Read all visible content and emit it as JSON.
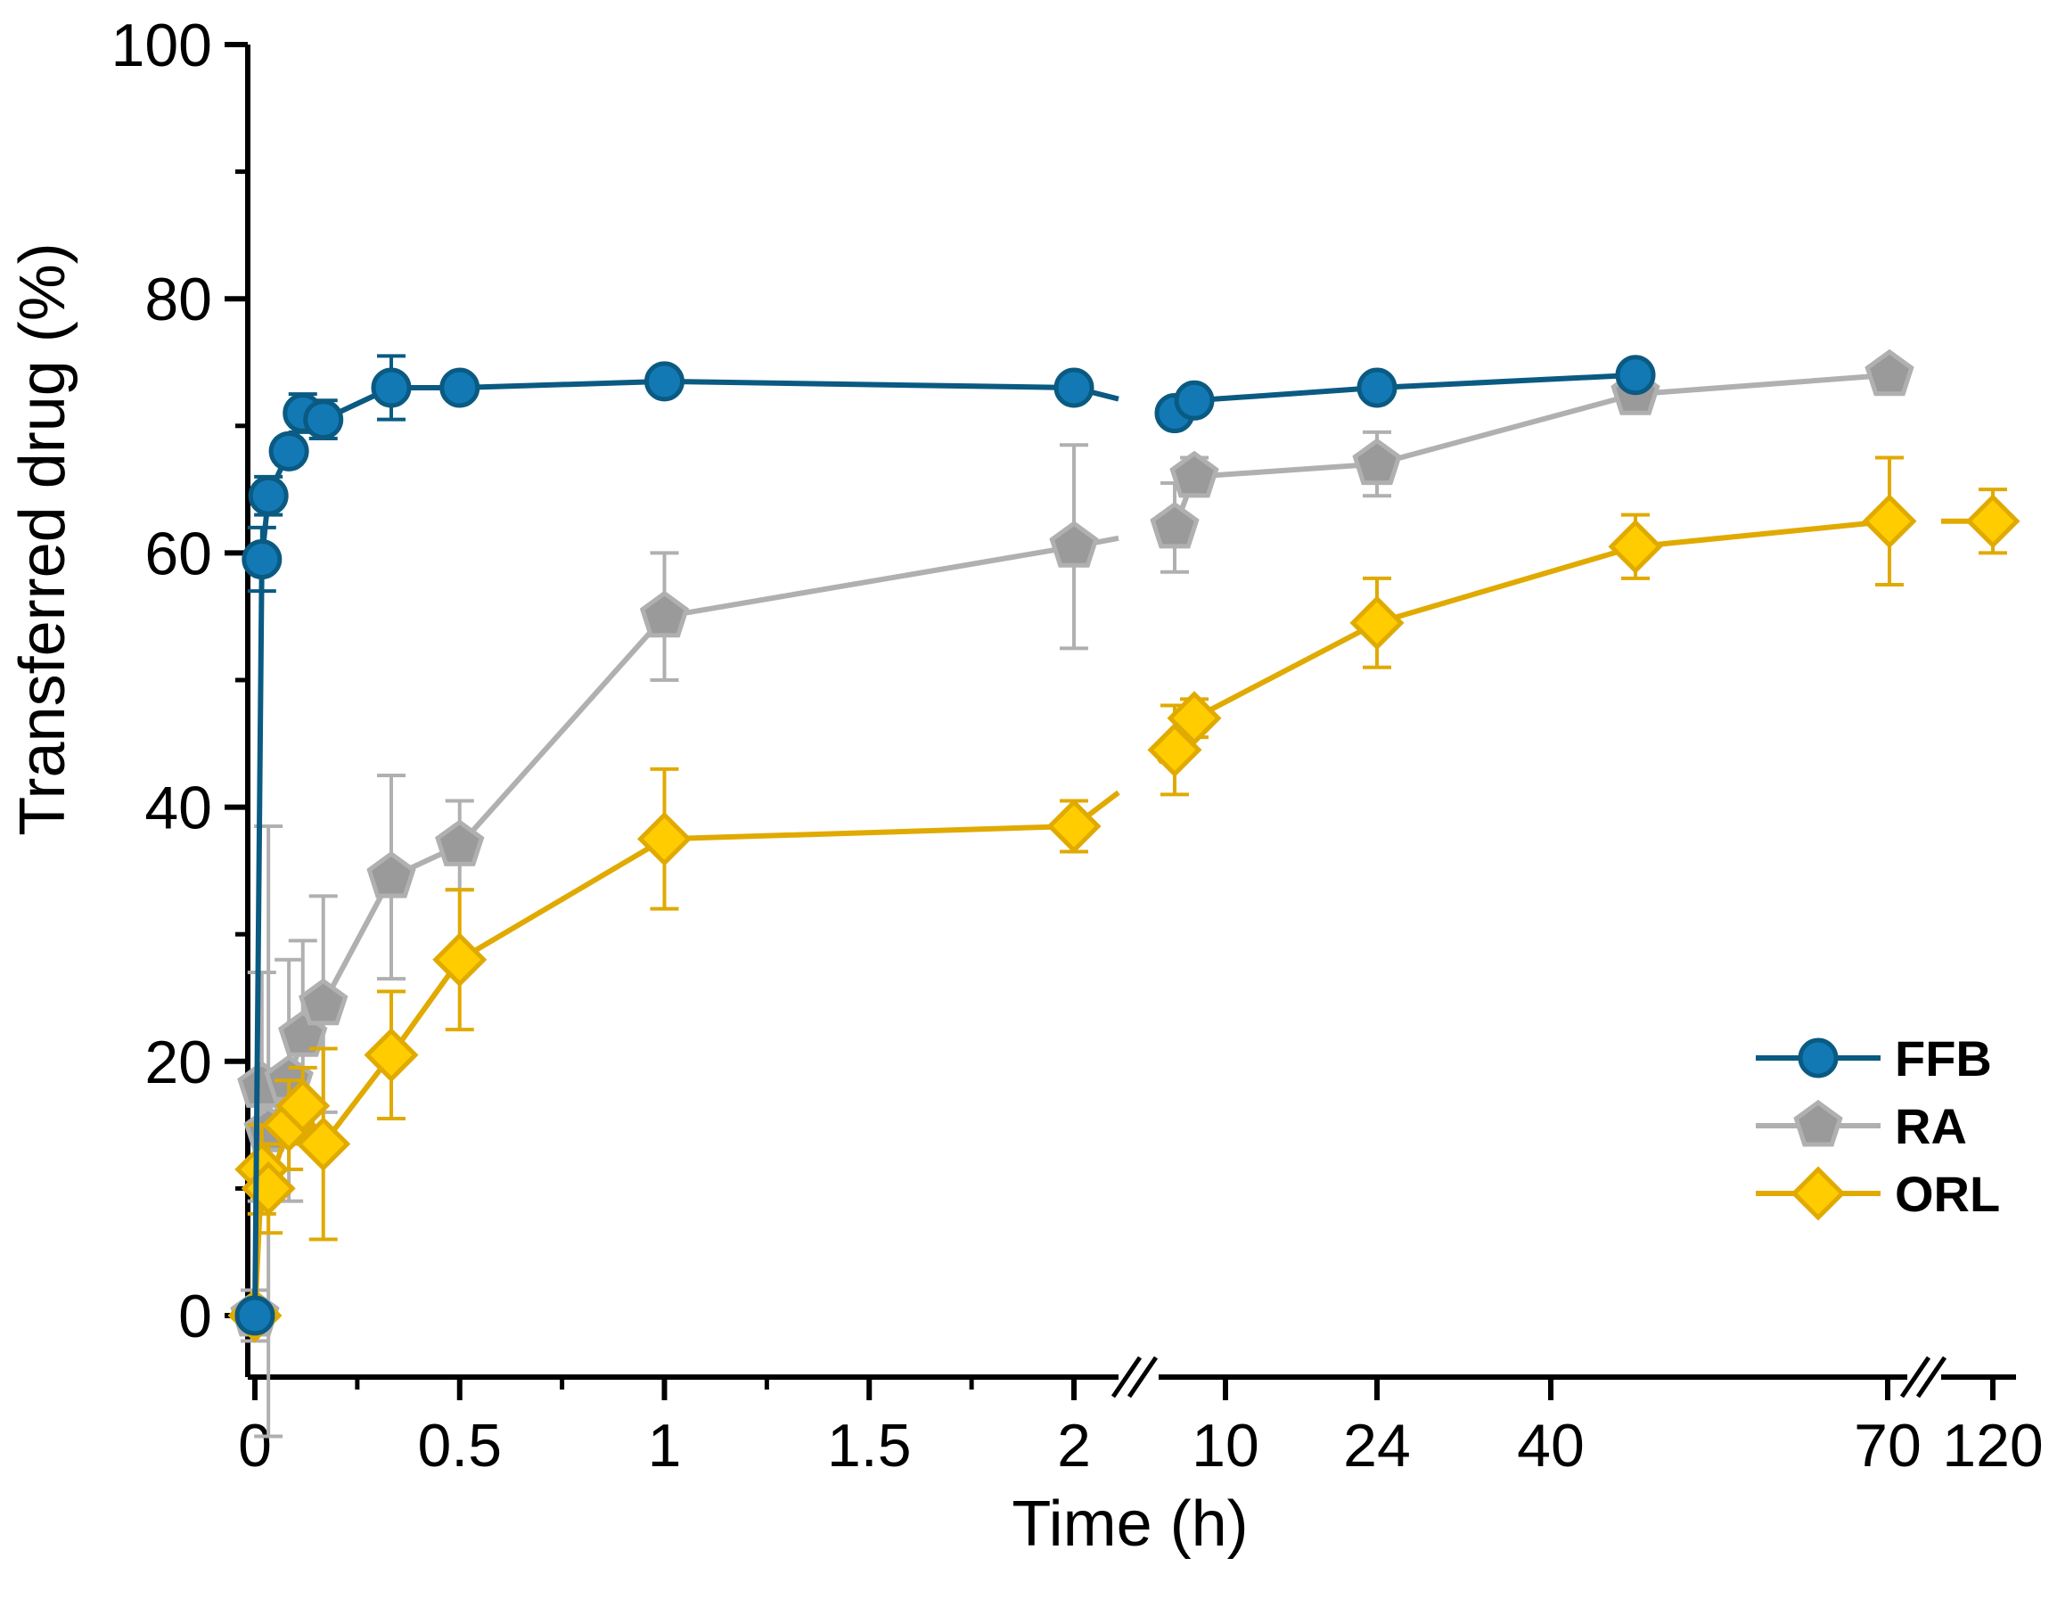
{
  "chart_data": {
    "type": "line",
    "title": "",
    "xlabel": "Time (h)",
    "ylabel": "Transferred drug (%)",
    "ylim": [
      0,
      100
    ],
    "yticks": [
      0,
      20,
      40,
      60,
      80,
      100
    ],
    "x_axis": {
      "scale": "segmented with axis breaks",
      "segments": [
        {
          "range": [
            0,
            2
          ],
          "ticks": [
            0,
            0.5,
            1,
            1.5,
            2
          ],
          "tick_labels": [
            "0",
            "0.5",
            "1",
            "1.5",
            "2"
          ]
        },
        {
          "range": [
            6,
            70
          ],
          "ticks": [
            10,
            24,
            40,
            70
          ],
          "tick_labels": [
            "10",
            "24",
            "40",
            "70"
          ]
        },
        {
          "range": [
            120,
            120
          ],
          "ticks": [
            120
          ],
          "tick_labels": [
            "120"
          ]
        }
      ],
      "breaks": [
        "between 2 and 10",
        "between 70 and 120"
      ]
    },
    "legend": {
      "position": "bottom-right"
    },
    "grid": false,
    "series": [
      {
        "name": "FFB",
        "color": "#0a5a82",
        "fill": "#1279b5",
        "marker": "circle",
        "points": [
          {
            "x": 0,
            "y": 0,
            "err": 0
          },
          {
            "x": 0.017,
            "y": 59.5,
            "err": 2.5
          },
          {
            "x": 0.033,
            "y": 64.5,
            "err": 1.5
          },
          {
            "x": 0.083,
            "y": 68,
            "err": 1
          },
          {
            "x": 0.117,
            "y": 71,
            "err": 1.5
          },
          {
            "x": 0.167,
            "y": 70.5,
            "err": 1.5
          },
          {
            "x": 0.333,
            "y": 73,
            "err": 2.5
          },
          {
            "x": 0.5,
            "y": 73,
            "err": 0.5
          },
          {
            "x": 1,
            "y": 73.5,
            "err": 0.5
          },
          {
            "x": 2,
            "y": 73,
            "err": 0.5
          },
          {
            "x": 6,
            "y": 71,
            "err": 0.5
          },
          {
            "x": 8,
            "y": 72,
            "err": 0.5
          },
          {
            "x": 24,
            "y": 73,
            "err": 0.5
          },
          {
            "x": 48,
            "y": 74,
            "err": 0.5
          }
        ]
      },
      {
        "name": "RA",
        "color": "#b0b0b0",
        "fill": "#9a9a9a",
        "marker": "pentagon",
        "points": [
          {
            "x": 0,
            "y": 0,
            "err": 2
          },
          {
            "x": 0.017,
            "y": 18,
            "err": 9
          },
          {
            "x": 0.033,
            "y": 14.5,
            "err": 24
          },
          {
            "x": 0.083,
            "y": 18.5,
            "err": 9.5
          },
          {
            "x": 0.117,
            "y": 22,
            "err": 7.5
          },
          {
            "x": 0.167,
            "y": 24.5,
            "err": 8.5
          },
          {
            "x": 0.333,
            "y": 34.5,
            "err": 8
          },
          {
            "x": 0.5,
            "y": 37,
            "err": 3.5
          },
          {
            "x": 1,
            "y": 55,
            "err": 5
          },
          {
            "x": 2,
            "y": 60.5,
            "err": 8
          },
          {
            "x": 6,
            "y": 62,
            "err": 3.5
          },
          {
            "x": 8,
            "y": 66,
            "err": 1.5
          },
          {
            "x": 24,
            "y": 67,
            "err": 2.5
          },
          {
            "x": 48,
            "y": 72.5,
            "err": 1
          },
          {
            "x": 72,
            "y": 74,
            "err": 0.5
          }
        ]
      },
      {
        "name": "ORL",
        "color": "#e0aa00",
        "fill": "#ffcc00",
        "marker": "diamond",
        "points": [
          {
            "x": 0,
            "y": 0,
            "err": 0
          },
          {
            "x": 0.017,
            "y": 11.5,
            "err": 3.5
          },
          {
            "x": 0.033,
            "y": 10,
            "err": 3.5
          },
          {
            "x": 0.083,
            "y": 15,
            "err": 3.5
          },
          {
            "x": 0.117,
            "y": 16.5,
            "err": 3
          },
          {
            "x": 0.167,
            "y": 13.5,
            "err": 7.5
          },
          {
            "x": 0.333,
            "y": 20.5,
            "err": 5
          },
          {
            "x": 0.5,
            "y": 28,
            "err": 5.5
          },
          {
            "x": 1,
            "y": 37.5,
            "err": 5.5
          },
          {
            "x": 2,
            "y": 38.5,
            "err": 2
          },
          {
            "x": 6,
            "y": 44.5,
            "err": 3.5
          },
          {
            "x": 8,
            "y": 47,
            "err": 1.5
          },
          {
            "x": 24,
            "y": 54.5,
            "err": 3.5
          },
          {
            "x": 48,
            "y": 60.5,
            "err": 2.5
          },
          {
            "x": 72,
            "y": 62.5,
            "err": 5
          },
          {
            "x": 120,
            "y": 62.5,
            "err": 2.5
          }
        ]
      }
    ]
  }
}
